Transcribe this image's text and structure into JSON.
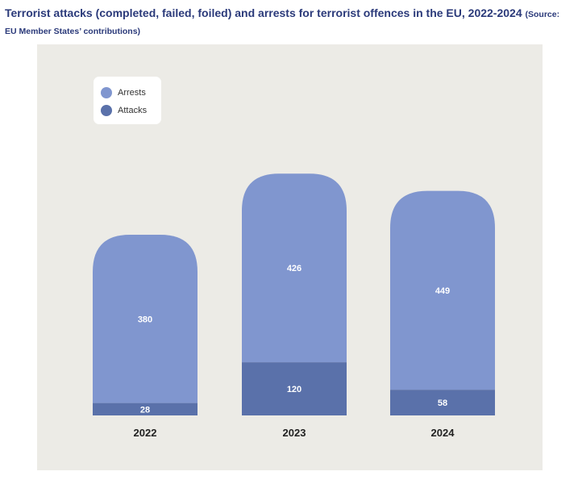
{
  "title": {
    "main": "Terrorist attacks (completed, failed, foiled) and arrests for terrorist offences in the EU, 2022-2024",
    "source": "(Source: EU Member States’ contributions)"
  },
  "colors": {
    "arrests": "#8096cf",
    "attacks": "#5a71aa",
    "panel": "#ecebe6",
    "label": "#ffffff",
    "axis_text": "#222222"
  },
  "chart_data": {
    "type": "bar",
    "stacked": true,
    "categories": [
      "2022",
      "2023",
      "2024"
    ],
    "series": [
      {
        "name": "Attacks",
        "values": [
          28,
          120,
          58
        ]
      },
      {
        "name": "Arrests",
        "values": [
          380,
          426,
          449
        ]
      }
    ],
    "legend": {
      "position": "top-left",
      "entries": [
        "Arrests",
        "Attacks"
      ]
    },
    "grid": false
  }
}
